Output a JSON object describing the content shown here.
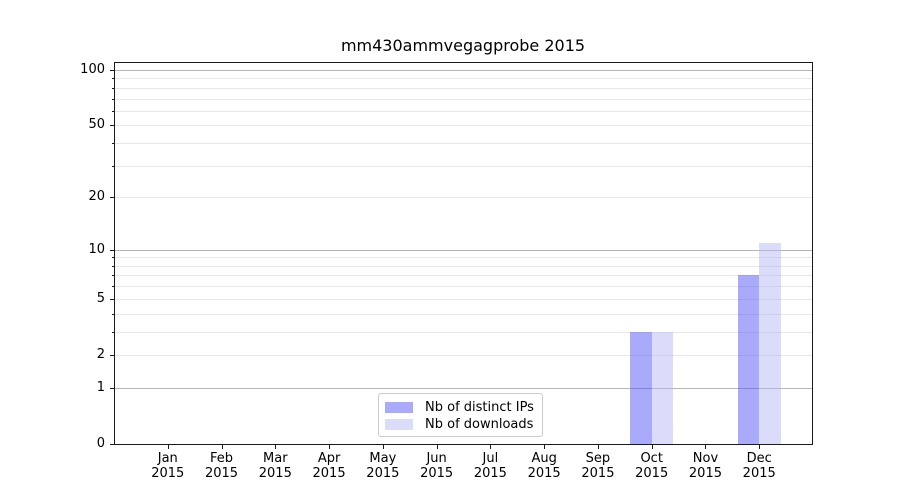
{
  "chart_data": {
    "type": "bar",
    "title": "mm430ammvegagprobe 2015",
    "x_axis": {
      "months": [
        "Jan",
        "Feb",
        "Mar",
        "Apr",
        "May",
        "Jun",
        "Jul",
        "Aug",
        "Sep",
        "Oct",
        "Nov",
        "Dec"
      ],
      "year": "2015"
    },
    "y_axis": {
      "scale": "log1p",
      "tick_labels": [
        "0",
        "1",
        "2",
        "5",
        "10",
        "20",
        "50",
        "100"
      ],
      "ticks": [
        0,
        1,
        2,
        5,
        10,
        20,
        50,
        100
      ],
      "decade_gridlines": [
        1,
        10,
        100
      ],
      "minor_gridlines": [
        2,
        3,
        4,
        5,
        6,
        7,
        8,
        9,
        20,
        30,
        40,
        50,
        60,
        70,
        80,
        90
      ],
      "ymax": 110
    },
    "series": [
      {
        "name": "Nb of distinct IPs",
        "color": "#aaaafa",
        "color_rgba": "rgba(85,85,245,0.5)",
        "values": [
          0,
          0,
          0,
          0,
          0,
          0,
          0,
          0,
          0,
          3,
          0,
          7
        ]
      },
      {
        "name": "Nb of downloads",
        "color": "#dbdbfa",
        "color_rgba": "rgba(183,183,245,0.5)",
        "values": [
          0,
          0,
          0,
          0,
          0,
          0,
          0,
          0,
          0,
          3,
          0,
          11
        ]
      }
    ],
    "legend": {
      "position": "lower center",
      "entries": [
        "Nb of distinct IPs",
        "Nb of downloads"
      ]
    },
    "grid": true,
    "colors": {
      "grid_major": "#b5b5b5",
      "grid_minor": "#e7e7e7",
      "spine": "#1a1a1a",
      "background": "#ffffff"
    }
  }
}
